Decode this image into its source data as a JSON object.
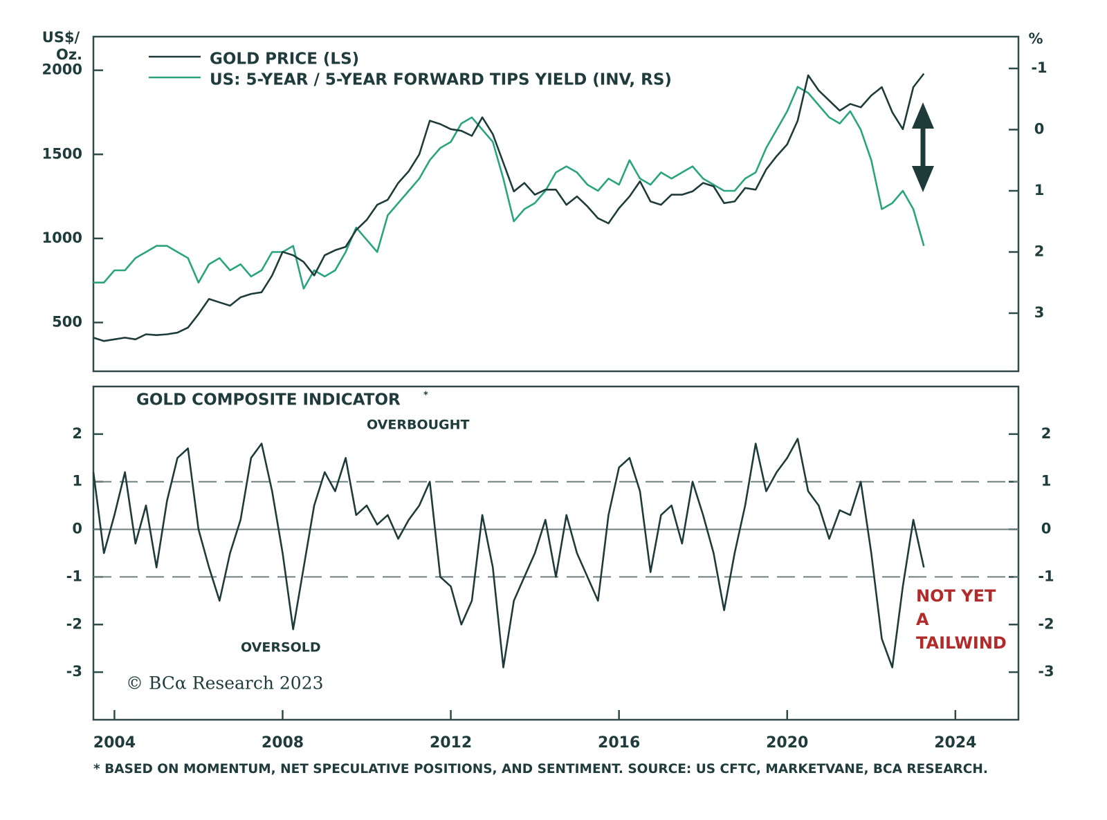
{
  "chart_data": [
    {
      "type": "line",
      "y_label": [
        "US$/",
        "Oz."
      ],
      "y2_label": "%",
      "x": [
        2003.5,
        2003.75,
        2004,
        2004.25,
        2004.5,
        2004.75,
        2005,
        2005.25,
        2005.5,
        2005.75,
        2006,
        2006.25,
        2006.5,
        2006.75,
        2007,
        2007.25,
        2007.5,
        2007.75,
        2008,
        2008.25,
        2008.5,
        2008.75,
        2009,
        2009.25,
        2009.5,
        2009.75,
        2010,
        2010.25,
        2010.5,
        2010.75,
        2011,
        2011.25,
        2011.5,
        2011.75,
        2012,
        2012.25,
        2012.5,
        2012.75,
        2013,
        2013.25,
        2013.5,
        2013.75,
        2014,
        2014.25,
        2014.5,
        2014.75,
        2015,
        2015.25,
        2015.5,
        2015.75,
        2016,
        2016.25,
        2016.5,
        2016.75,
        2017,
        2017.25,
        2017.5,
        2017.75,
        2018,
        2018.25,
        2018.5,
        2018.75,
        2019,
        2019.25,
        2019.5,
        2019.75,
        2020,
        2020.25,
        2020.5,
        2020.75,
        2021,
        2021.25,
        2021.5,
        2021.75,
        2022,
        2022.25,
        2022.5,
        2022.75,
        2023,
        2023.25
      ],
      "xlim": [
        2003.5,
        2025.5
      ],
      "ylim": [
        210,
        2200
      ],
      "yticks": [
        500,
        1000,
        1500,
        2000
      ],
      "y2lim": [
        3.95,
        -1.52
      ],
      "y2ticks": [
        -1,
        0,
        1,
        2,
        3
      ],
      "series": [
        {
          "name": "GOLD PRICE (LS)",
          "color": "#1e3b3a",
          "values": [
            410,
            390,
            400,
            410,
            400,
            430,
            425,
            430,
            440,
            470,
            550,
            640,
            620,
            600,
            650,
            670,
            680,
            780,
            920,
            900,
            860,
            780,
            900,
            930,
            950,
            1050,
            1110,
            1200,
            1230,
            1330,
            1400,
            1500,
            1700,
            1680,
            1650,
            1640,
            1610,
            1720,
            1620,
            1450,
            1280,
            1330,
            1260,
            1290,
            1290,
            1200,
            1250,
            1190,
            1120,
            1090,
            1180,
            1250,
            1340,
            1220,
            1200,
            1260,
            1260,
            1280,
            1330,
            1310,
            1210,
            1220,
            1300,
            1290,
            1410,
            1490,
            1560,
            1700,
            1970,
            1880,
            1820,
            1760,
            1800,
            1780,
            1850,
            1900,
            1750,
            1650,
            1900,
            1980
          ]
        },
        {
          "name": "US: 5-YEAR / 5-YEAR FORWARD TIPS YIELD (INV, RS)",
          "color": "#2aa37f",
          "axis": "y2",
          "values": [
            2.5,
            2.5,
            2.3,
            2.3,
            2.1,
            2.0,
            1.9,
            1.9,
            2.0,
            2.1,
            2.5,
            2.2,
            2.1,
            2.3,
            2.2,
            2.4,
            2.3,
            2.0,
            2.0,
            1.9,
            2.6,
            2.3,
            2.4,
            2.3,
            2.0,
            1.6,
            1.8,
            2.0,
            1.4,
            1.2,
            1.0,
            0.8,
            0.5,
            0.3,
            0.2,
            -0.1,
            -0.2,
            0.0,
            0.2,
            0.8,
            1.5,
            1.3,
            1.2,
            1.0,
            0.7,
            0.6,
            0.7,
            0.9,
            1.0,
            0.8,
            0.9,
            0.5,
            0.8,
            0.9,
            0.7,
            0.8,
            0.7,
            0.6,
            0.8,
            0.9,
            1.0,
            1.0,
            0.8,
            0.7,
            0.3,
            0.0,
            -0.3,
            -0.7,
            -0.6,
            -0.4,
            -0.2,
            -0.1,
            -0.3,
            0.0,
            0.5,
            1.3,
            1.2,
            1.0,
            1.3,
            1.9
          ]
        }
      ]
    },
    {
      "type": "line",
      "title": "GOLD COMPOSITE INDICATOR",
      "title_note": "*",
      "annotations": {
        "overbought": "OVERBOUGHT",
        "oversold": "OVERSOLD",
        "tailwind": [
          "NOT YET",
          "A",
          "TAILWIND"
        ]
      },
      "copyright": "© BCα Research 2023",
      "footnote": "* BASED ON MOMENTUM, NET SPECULATIVE POSITIONS, AND SENTIMENT. SOURCE: US CFTC, MARKETVANE, BCA RESEARCH.",
      "x": [
        2003.5,
        2003.75,
        2004,
        2004.25,
        2004.5,
        2004.75,
        2005,
        2005.25,
        2005.5,
        2005.75,
        2006,
        2006.25,
        2006.5,
        2006.75,
        2007,
        2007.25,
        2007.5,
        2007.75,
        2008,
        2008.25,
        2008.5,
        2008.75,
        2009,
        2009.25,
        2009.5,
        2009.75,
        2010,
        2010.25,
        2010.5,
        2010.75,
        2011,
        2011.25,
        2011.5,
        2011.75,
        2012,
        2012.25,
        2012.5,
        2012.75,
        2013,
        2013.25,
        2013.5,
        2013.75,
        2014,
        2014.25,
        2014.5,
        2014.75,
        2015,
        2015.25,
        2015.5,
        2015.75,
        2016,
        2016.25,
        2016.5,
        2016.75,
        2017,
        2017.25,
        2017.5,
        2017.75,
        2018,
        2018.25,
        2018.5,
        2018.75,
        2019,
        2019.25,
        2019.5,
        2019.75,
        2020,
        2020.25,
        2020.5,
        2020.75,
        2021,
        2021.25,
        2021.5,
        2021.75,
        2022,
        2022.25,
        2022.5,
        2022.75,
        2023,
        2023.25
      ],
      "xlim": [
        2003.5,
        2025.5
      ],
      "xticks": [
        2004,
        2008,
        2012,
        2016,
        2020,
        2024
      ],
      "ylim": [
        -4,
        3
      ],
      "yticks": [
        -3,
        -2,
        -1,
        0,
        1,
        2
      ],
      "dashed_lines": [
        1,
        -1
      ],
      "solid_lines": [
        0
      ],
      "series": [
        {
          "name": "GOLD COMPOSITE INDICATOR",
          "color": "#1e3b3a",
          "values": [
            1.2,
            -0.5,
            0.3,
            1.2,
            -0.3,
            0.5,
            -0.8,
            0.6,
            1.5,
            1.7,
            0.0,
            -0.8,
            -1.5,
            -0.5,
            0.2,
            1.5,
            1.8,
            0.8,
            -0.5,
            -2.1,
            -0.8,
            0.5,
            1.2,
            0.8,
            1.5,
            0.3,
            0.5,
            0.1,
            0.3,
            -0.2,
            0.2,
            0.5,
            1.0,
            -1.0,
            -1.2,
            -2.0,
            -1.5,
            0.3,
            -0.8,
            -2.9,
            -1.5,
            -1.0,
            -0.5,
            0.2,
            -1.0,
            0.3,
            -0.5,
            -1.0,
            -1.5,
            0.3,
            1.3,
            1.5,
            0.8,
            -0.9,
            0.3,
            0.5,
            -0.3,
            1.0,
            0.3,
            -0.5,
            -1.7,
            -0.5,
            0.5,
            1.8,
            0.8,
            1.2,
            1.5,
            1.9,
            0.8,
            0.5,
            -0.2,
            0.4,
            0.3,
            1.0,
            -0.5,
            -2.3,
            -2.9,
            -1.2,
            0.2,
            -0.8
          ]
        }
      ]
    }
  ]
}
